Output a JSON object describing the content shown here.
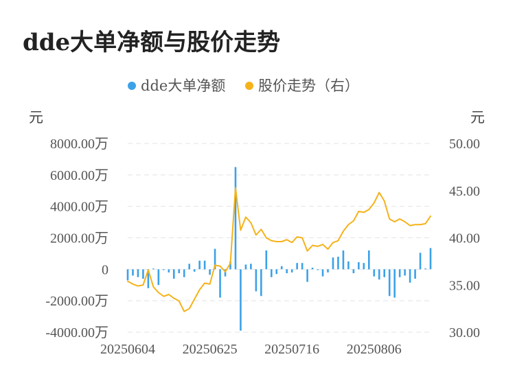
{
  "title": "dde大单净额与股价走势",
  "chart_data": {
    "type": "bar+line",
    "title": "dde大单净额与股价走势",
    "legend": {
      "placement": "top-center"
    },
    "grid": true,
    "y_left": {
      "unit": "元",
      "min": -4000,
      "max": 8000,
      "ticks": [
        -4000,
        -2000,
        0,
        2000,
        4000,
        6000,
        8000
      ],
      "tick_labels": [
        "-4000.00万",
        "-2000.00万",
        "0",
        "2000.00万",
        "4000.00万",
        "6000.00万",
        "8000.00万"
      ]
    },
    "y_right": {
      "unit": "元",
      "min": 30,
      "max": 50,
      "ticks": [
        30,
        35,
        40,
        45,
        50
      ],
      "tick_labels": [
        "30.00",
        "35.00",
        "40.00",
        "45.00",
        "50.00"
      ]
    },
    "x_tick_labels": [
      {
        "label": "20250604",
        "index": 0
      },
      {
        "label": "20250625",
        "index": 16
      },
      {
        "label": "20250716",
        "index": 32
      },
      {
        "label": "20250806",
        "index": 48
      }
    ],
    "series": [
      {
        "name": "dde大单净额",
        "type": "bar",
        "axis": "left",
        "color": "#3ba1e8",
        "values": [
          -700,
          -400,
          -500,
          -600,
          -1200,
          50,
          -1000,
          -50,
          -200,
          -600,
          -250,
          -500,
          350,
          -150,
          550,
          550,
          -350,
          1300,
          -1800,
          -450,
          500,
          6500,
          -3900,
          300,
          350,
          -1400,
          -1700,
          1200,
          -500,
          -300,
          200,
          -250,
          -200,
          400,
          400,
          -800,
          100,
          -50,
          -450,
          -200,
          750,
          800,
          1200,
          500,
          -250,
          450,
          400,
          1200,
          -450,
          -650,
          -500,
          -1700,
          -1800,
          -500,
          -400,
          -850,
          -600,
          1050,
          50,
          1350
        ]
      },
      {
        "name": "股价走势（右）",
        "type": "line",
        "axis": "right",
        "color": "#f5b21a",
        "values": [
          35.4,
          35.1,
          34.9,
          35.0,
          36.6,
          34.8,
          34.2,
          33.8,
          34.0,
          33.6,
          33.3,
          32.2,
          32.5,
          33.5,
          34.5,
          35.2,
          35.1,
          37.1,
          37.0,
          36.4,
          37.3,
          45.3,
          40.8,
          42.2,
          41.6,
          40.3,
          40.9,
          40.0,
          39.7,
          39.6,
          39.6,
          39.8,
          39.5,
          40.1,
          40.0,
          38.6,
          39.2,
          39.1,
          39.3,
          38.8,
          39.5,
          39.7,
          40.7,
          41.4,
          41.8,
          42.8,
          42.7,
          43.0,
          43.7,
          44.8,
          43.9,
          42.0,
          41.7,
          42.0,
          41.7,
          41.3,
          41.4,
          41.4,
          41.5,
          42.3
        ]
      }
    ]
  }
}
